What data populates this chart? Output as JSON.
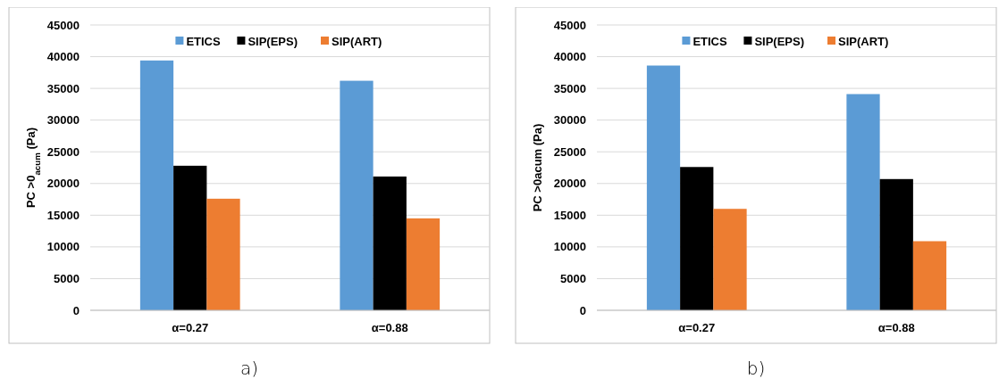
{
  "chart_data": [
    {
      "type": "bar",
      "ylabel": "PC >0$_{acum}$ (Pa)",
      "categories": [
        "α=0.27",
        "α=0.88"
      ],
      "series": [
        {
          "name": "ETICS",
          "color": "#5b9bd5",
          "values": [
            39400,
            36200
          ]
        },
        {
          "name": "SIP(EPS)",
          "color": "#000000",
          "values": [
            22800,
            21100
          ]
        },
        {
          "name": "SIP(ART)",
          "color": "#ed7d31",
          "values": [
            17600,
            14500
          ]
        }
      ],
      "ylim": [
        0,
        45000
      ],
      "yticks": [
        0,
        5000,
        10000,
        15000,
        20000,
        25000,
        30000,
        35000,
        40000,
        45000
      ],
      "grid": "y",
      "legend": "top",
      "annotations": [
        "a)"
      ]
    },
    {
      "type": "bar",
      "ylabel": "PC >0acum (Pa)",
      "categories": [
        "α=0.27",
        "α=0.88"
      ],
      "series": [
        {
          "name": "ETICS",
          "color": "#5b9bd5",
          "values": [
            38600,
            34100
          ]
        },
        {
          "name": "SIP(EPS)",
          "color": "#000000",
          "values": [
            22600,
            20700
          ]
        },
        {
          "name": "SIP(ART)",
          "color": "#ed7d31",
          "values": [
            16000,
            10900
          ]
        }
      ],
      "ylim": [
        0,
        45000
      ],
      "yticks": [
        0,
        5000,
        10000,
        15000,
        20000,
        25000,
        30000,
        35000,
        40000,
        45000
      ],
      "grid": "y",
      "legend": "top",
      "annotations": [
        "b)"
      ]
    }
  ]
}
